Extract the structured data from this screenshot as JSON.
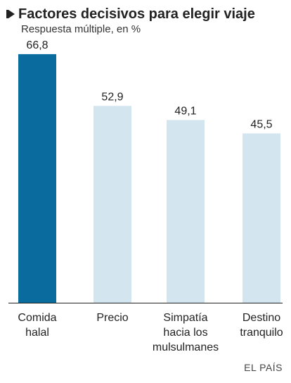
{
  "title": "Factores decisivos para elegir viaje",
  "subtitle": "Respuesta múltiple, en %",
  "source": "EL PAÍS",
  "colors": {
    "highlight": "#0a6b9e",
    "bar": "#d3e6ef",
    "axis": "#222222",
    "text": "#222222"
  },
  "chart_data": {
    "type": "bar",
    "title": "Factores decisivos para elegir viaje",
    "subtitle": "Respuesta múltiple, en %",
    "categories": [
      [
        "Comida",
        "halal"
      ],
      [
        "Precio"
      ],
      [
        "Simpatía",
        "hacia los",
        "mulsulmanes"
      ],
      [
        "Destino",
        "tranquilo"
      ]
    ],
    "values": [
      66.8,
      52.9,
      49.1,
      45.5
    ],
    "value_labels": [
      "66,8",
      "52,9",
      "49,1",
      "45,5"
    ],
    "highlight_index": 0,
    "ylim": [
      0,
      70
    ],
    "grid": false,
    "legend": "none"
  }
}
